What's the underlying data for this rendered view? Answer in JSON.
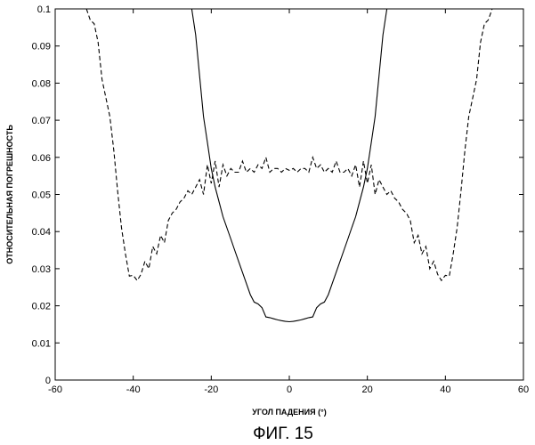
{
  "chart_data": {
    "type": "line",
    "caption": "ФИГ. 15",
    "xlabel": "УГОЛ ПАДЕНИЯ (°)",
    "ylabel": "ОТНОСИТЕЛЬНАЯ ПОГРЕШНОСТЬ",
    "xlim": [
      -60,
      60
    ],
    "ylim": [
      0,
      0.1
    ],
    "grid": false,
    "xticks": [
      "-60",
      "-40",
      "-20",
      "0",
      "20",
      "40",
      "60"
    ],
    "yticks": [
      "0",
      "0.01",
      "0.02",
      "0.03",
      "0.04",
      "0.05",
      "0.06",
      "0.07",
      "0.08",
      "0.09",
      "0.1"
    ],
    "series": [
      {
        "style": "solid",
        "color": "#000000",
        "x": [
          -25,
          -24,
          -23,
          -22,
          -21,
          -20,
          -19,
          -18,
          -17,
          -16,
          -15,
          -14,
          -13,
          -12,
          -11,
          -10,
          -9,
          -8,
          -7,
          -6,
          -5,
          -4,
          -3,
          -2,
          -1,
          0,
          1,
          2,
          3,
          4,
          5,
          6,
          7,
          8,
          9,
          10,
          11,
          12,
          13,
          14,
          15,
          16,
          17,
          18,
          19,
          20,
          21,
          22,
          23,
          24,
          25
        ],
        "y": [
          0.1,
          0.093,
          0.082,
          0.071,
          0.064,
          0.057,
          0.052,
          0.048,
          0.044,
          0.041,
          0.038,
          0.035,
          0.032,
          0.029,
          0.026,
          0.023,
          0.021,
          0.0205,
          0.0195,
          0.017,
          0.0168,
          0.0165,
          0.0162,
          0.016,
          0.0158,
          0.0157,
          0.0158,
          0.016,
          0.0162,
          0.0165,
          0.0168,
          0.017,
          0.0195,
          0.0205,
          0.021,
          0.023,
          0.026,
          0.029,
          0.032,
          0.035,
          0.038,
          0.041,
          0.044,
          0.048,
          0.052,
          0.057,
          0.064,
          0.071,
          0.082,
          0.093,
          0.1
        ]
      },
      {
        "style": "dashed",
        "color": "#000000",
        "x": [
          -52,
          -51,
          -50,
          -49,
          -48,
          -47,
          -46,
          -45,
          -44,
          -43,
          -42,
          -41,
          -40,
          -39,
          -38,
          -37,
          -36,
          -35,
          -34,
          -33,
          -32,
          -31,
          -30,
          -29,
          -28,
          -27,
          -26,
          -25,
          -24,
          -23,
          -22,
          -21,
          -20,
          -19,
          -18,
          -17,
          -16,
          -15,
          -14,
          -13,
          -12,
          -11,
          -10,
          -9,
          -8,
          -7,
          -6,
          -5,
          -4,
          -3,
          -2,
          -1,
          0,
          1,
          2,
          3,
          4,
          5,
          6,
          7,
          8,
          9,
          10,
          11,
          12,
          13,
          14,
          15,
          16,
          17,
          18,
          19,
          20,
          21,
          22,
          23,
          24,
          25,
          26,
          27,
          28,
          29,
          30,
          31,
          32,
          33,
          34,
          35,
          36,
          37,
          38,
          39,
          40,
          41,
          42,
          43,
          44,
          45,
          46,
          47,
          48,
          49,
          50,
          51,
          52
        ],
        "y": [
          0.1,
          0.097,
          0.096,
          0.091,
          0.081,
          0.076,
          0.071,
          0.062,
          0.051,
          0.041,
          0.034,
          0.028,
          0.0282,
          0.0268,
          0.0285,
          0.032,
          0.03,
          0.036,
          0.034,
          0.039,
          0.037,
          0.043,
          0.045,
          0.046,
          0.048,
          0.049,
          0.051,
          0.05,
          0.052,
          0.054,
          0.05,
          0.058,
          0.053,
          0.059,
          0.052,
          0.058,
          0.055,
          0.057,
          0.056,
          0.056,
          0.059,
          0.056,
          0.057,
          0.056,
          0.058,
          0.057,
          0.06,
          0.056,
          0.057,
          0.057,
          0.056,
          0.057,
          0.0565,
          0.057,
          0.056,
          0.057,
          0.057,
          0.056,
          0.06,
          0.057,
          0.058,
          0.056,
          0.057,
          0.056,
          0.059,
          0.056,
          0.056,
          0.057,
          0.055,
          0.058,
          0.052,
          0.059,
          0.053,
          0.058,
          0.05,
          0.054,
          0.052,
          0.05,
          0.051,
          0.049,
          0.048,
          0.046,
          0.045,
          0.043,
          0.037,
          0.039,
          0.034,
          0.036,
          0.03,
          0.032,
          0.0285,
          0.0268,
          0.0282,
          0.028,
          0.034,
          0.041,
          0.051,
          0.062,
          0.071,
          0.076,
          0.081,
          0.091,
          0.096,
          0.097,
          0.1
        ]
      }
    ]
  }
}
